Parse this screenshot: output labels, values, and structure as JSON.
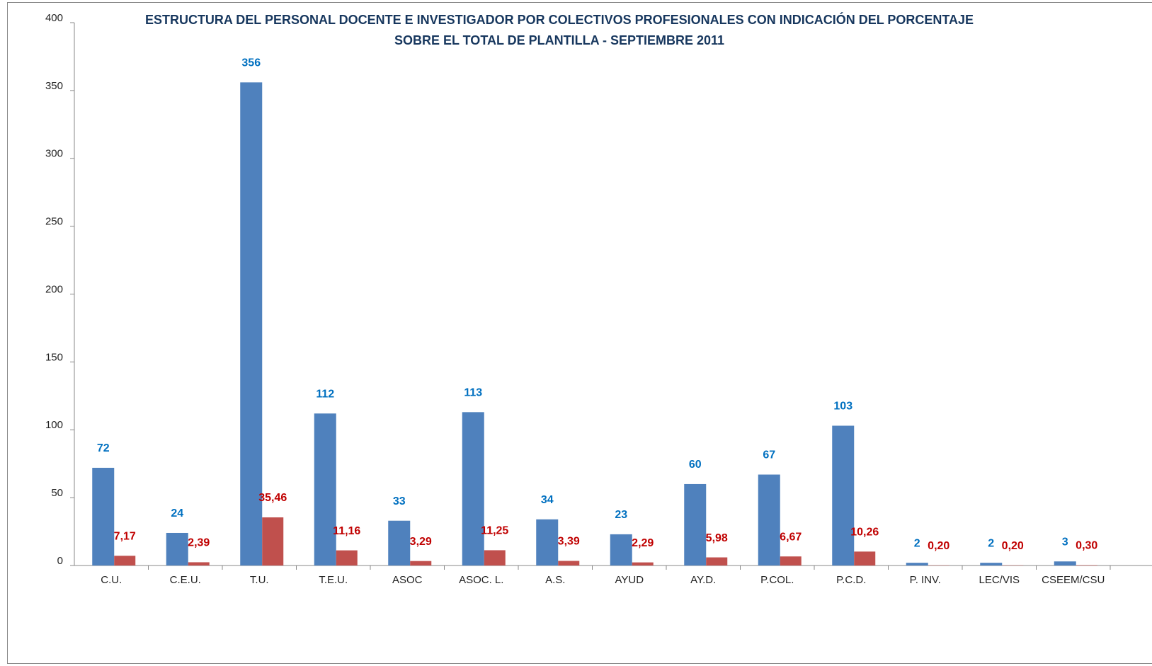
{
  "chart_data": {
    "type": "bar",
    "title": [
      "ESTRUCTURA DEL PERSONAL DOCENTE E INVESTIGADOR POR COLECTIVOS PROFESIONALES CON INDICACIÓN DEL PORCENTAJE",
      "SOBRE EL TOTAL DE PLANTILLA - SEPTIEMBRE 2011"
    ],
    "categories": [
      "C.U.",
      "C.E.U.",
      "T.U.",
      "T.E.U.",
      "ASOC",
      "ASOC. L.",
      "A.S.",
      "AYUD",
      "AY.D.",
      "P.COL.",
      "P.C.D.",
      "P. INV.",
      "LEC/VIS",
      "CSEEM/CSU"
    ],
    "series": [
      {
        "color": "#4f81bd",
        "label_color": "#0070c0",
        "values": [
          72,
          24,
          356,
          112,
          33,
          113,
          34,
          23,
          60,
          67,
          103,
          2,
          2,
          3
        ]
      },
      {
        "color": "#c0504d",
        "label_color": "#c00000",
        "values": [
          7.17,
          2.39,
          35.46,
          11.16,
          3.29,
          11.25,
          3.39,
          2.29,
          5.98,
          6.67,
          10.26,
          0.2,
          0.2,
          0.3
        ],
        "value_labels": [
          "7,17",
          "2,39",
          "35,46",
          "11,16",
          "3,29",
          "11,25",
          "3,39",
          "2,29",
          "5,98",
          "6,67",
          "10,26",
          "0,20",
          "0,20",
          "0,30"
        ]
      }
    ],
    "ylim": [
      0,
      400
    ],
    "yticks": [
      0,
      50,
      100,
      150,
      200,
      250,
      300,
      350,
      400
    ],
    "grid": false
  }
}
